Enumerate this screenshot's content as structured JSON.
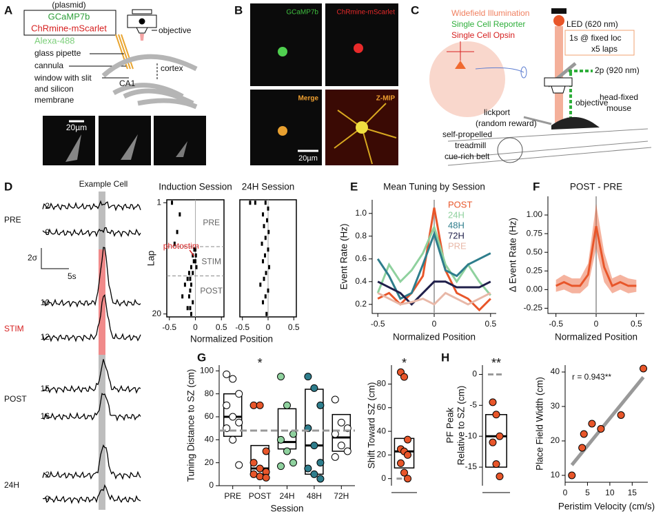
{
  "panels": {
    "A": {
      "label": "A",
      "plasmid": "(plasmid)",
      "constructs": [
        "GCaMP7b",
        "ChRmine-mScarlet"
      ],
      "dye": "Alexa-488",
      "labels": [
        "objective",
        "glass pipette",
        "cannula",
        "window with slit",
        "and silicon",
        "membrane",
        "cortex",
        "CA1"
      ],
      "scale": "20µm"
    },
    "B": {
      "label": "B",
      "images": [
        "GCaMP7b",
        "ChRmine-mScarlet",
        "Merge",
        "Z-MIP"
      ],
      "scale": "20µm"
    },
    "C": {
      "label": "C",
      "legend": [
        "Widefield Illumination",
        "Single Cell Reporter",
        "Single Cell Opsin"
      ],
      "labels": [
        "LED (620 nm)",
        "1s @ fixed loc",
        "x5 laps",
        "2p (920 nm)",
        "objective",
        "head-fixed",
        "mouse",
        "lickport",
        "(random reward)",
        "self-propelled",
        "treadmill",
        "cue-rich belt"
      ]
    },
    "D": {
      "label": "D",
      "title": "Example Cell",
      "groups": [
        "PRE",
        "STIM",
        "POST",
        "24H"
      ],
      "laps": [
        "2",
        "9",
        "10",
        "12",
        "15",
        "16",
        "2",
        "9"
      ],
      "scale_y": "2σ",
      "scale_x": "5s"
    },
    "E": {
      "label": "E"
    },
    "F": {
      "label": "F"
    },
    "G": {
      "label": "G"
    },
    "H": {
      "label": "H"
    }
  },
  "chart_data": [
    {
      "type": "raster",
      "title": "Induction Session",
      "xlabel": "Normalized Position",
      "ylabel": "Lap",
      "xlim": [
        -0.55,
        0.55
      ],
      "xticks": [
        -0.5,
        0,
        0.5
      ],
      "ylim": [
        20.5,
        0.5
      ],
      "yticks": [
        1,
        20
      ],
      "annotations": [
        "PRE",
        "STIM",
        "POST",
        "photostim"
      ],
      "dividers": [
        8.5,
        13.5
      ],
      "x": [
        -0.45,
        -0.3,
        -0.35,
        -0.4,
        0.0,
        -0.02,
        0.01,
        -0.05,
        0.0,
        -0.03,
        0.02,
        -0.08,
        -0.05,
        -0.12,
        -0.1,
        -0.15,
        -0.08,
        -0.2,
        -0.1,
        -0.25,
        -0.12,
        -0.05,
        -0.15,
        -0.1,
        -0.08
      ],
      "y": [
        1,
        3,
        6,
        8,
        9,
        9,
        10,
        10,
        11,
        11,
        12,
        12,
        13,
        13,
        14,
        14,
        15,
        15,
        16,
        17,
        17,
        18,
        19,
        19,
        20
      ]
    },
    {
      "type": "raster",
      "title": "24H Session",
      "xlim": [
        -0.55,
        0.55
      ],
      "xticks": [
        -0.5,
        0,
        0.5
      ],
      "ylim": [
        20.5,
        0.5
      ],
      "x": [
        -0.35,
        -0.25,
        -0.05,
        0,
        -0.1,
        -0.02,
        -0.08,
        0.01,
        -0.05,
        -0.12,
        0.0,
        -0.06,
        -0.1,
        0.02,
        -0.04,
        -0.08,
        -0.15,
        0.0,
        -0.05,
        -0.1,
        -0.03
      ],
      "y": [
        1,
        1,
        1,
        2,
        3,
        4,
        5,
        6,
        7,
        8,
        9,
        10,
        11,
        12,
        13,
        14,
        15,
        16,
        17,
        18,
        20
      ]
    },
    {
      "type": "line",
      "title": "Mean Tuning by Session",
      "xlabel": "Normalized Position",
      "ylabel": "Event Rate (Hz)",
      "xlim": [
        -0.55,
        0.55
      ],
      "xticks": [
        -0.5,
        0,
        0.5
      ],
      "ylim": [
        0.12,
        1.12
      ],
      "yticks": [
        0.2,
        0.4,
        0.6,
        0.8,
        {
          "value": 1,
          "label": "1.0"
        }
      ],
      "x": [
        -0.5,
        -0.4,
        -0.3,
        -0.2,
        -0.1,
        0,
        0.1,
        0.2,
        0.3,
        0.4,
        0.5
      ],
      "series": [
        {
          "name": "POST",
          "color": "#e8562a",
          "values": [
            0.25,
            0.3,
            0.2,
            0.3,
            0.45,
            1.05,
            0.5,
            0.3,
            0.25,
            0.15,
            0.25
          ]
        },
        {
          "name": "24H",
          "color": "#8fd19e",
          "values": [
            0.3,
            0.55,
            0.4,
            0.5,
            0.65,
            0.88,
            0.55,
            0.4,
            0.55,
            0.4,
            0.28
          ]
        },
        {
          "name": "48H",
          "color": "#2e7d8c",
          "values": [
            0.6,
            0.45,
            0.25,
            0.3,
            0.55,
            0.82,
            0.5,
            0.45,
            0.55,
            0.6,
            0.65
          ]
        },
        {
          "name": "72H",
          "color": "#1f1f4a",
          "values": [
            0.4,
            0.35,
            0.3,
            0.2,
            0.3,
            0.4,
            0.4,
            0.35,
            0.35,
            0.35,
            0.4
          ]
        },
        {
          "name": "PRE",
          "color": "#e8b8a8",
          "values": [
            0.3,
            0.25,
            0.2,
            0.22,
            0.25,
            0.2,
            0.3,
            0.25,
            0.2,
            0.25,
            0.3
          ]
        }
      ]
    },
    {
      "type": "line",
      "title": "POST - PRE",
      "xlabel": "Normalized Position",
      "ylabel": "Δ Event Rate (Hz)",
      "xlim": [
        -0.6,
        0.6
      ],
      "xticks": [
        -0.5,
        0,
        0.5
      ],
      "ylim": [
        -0.32,
        1.25
      ],
      "yticks": [
        -0.25,
        {
          "value": 0,
          "label": "0.00"
        },
        0.25,
        {
          "value": 0.5,
          "label": "0.50"
        },
        0.75,
        {
          "value": 1,
          "label": "1.00"
        }
      ],
      "x": [
        -0.5,
        -0.4,
        -0.3,
        -0.2,
        -0.1,
        0,
        0.1,
        0.2,
        0.3,
        0.4,
        0.5
      ],
      "series": [
        {
          "color": "#e8562a",
          "values": [
            0.05,
            0.1,
            0.05,
            0.05,
            0.2,
            0.85,
            0.3,
            0.05,
            0.1,
            0.05,
            0.05
          ],
          "errors": [
            0.08,
            0.1,
            0.1,
            0.1,
            0.15,
            0.3,
            0.2,
            0.1,
            0.1,
            0.1,
            0.08
          ]
        }
      ]
    },
    {
      "type": "box",
      "annotation": "*",
      "xlabel": "Session",
      "ylabel": "Tuning Distance to SZ (cm)",
      "ylim": [
        0,
        105
      ],
      "yticks": [
        0,
        20,
        40,
        60,
        80,
        100
      ],
      "reference": 48,
      "categories": [
        "PRE",
        "POST",
        "24H",
        "48H",
        "72H"
      ],
      "colors": [
        "#ffffff",
        "#e8562a",
        "#8fd19e",
        "#2e7d8c",
        "#ffffff"
      ],
      "q1": [
        43,
        10,
        32,
        10,
        30
      ],
      "median": [
        60,
        15,
        38,
        35,
        42
      ],
      "q3": [
        80,
        35,
        67,
        84,
        62
      ],
      "points": [
        [
          97,
          93,
          80,
          70,
          60,
          55,
          50,
          40,
          18
        ],
        [
          70,
          70,
          30,
          20,
          15,
          12,
          10,
          8,
          7
        ],
        [
          95,
          70,
          45,
          40,
          30,
          20,
          17
        ],
        [
          95,
          85,
          70,
          50,
          35,
          20,
          15,
          10,
          6
        ],
        [
          75,
          55,
          50,
          45,
          35,
          30,
          25
        ]
      ]
    },
    {
      "type": "strip",
      "annotation": "*",
      "ylabel": "Shift Toward SZ (cm)",
      "ylim": [
        -6,
        96
      ],
      "yticks": [
        0,
        20,
        40,
        60,
        80
      ],
      "reference": 0,
      "color": "#e8562a",
      "q1": 9,
      "median": 23,
      "q3": 34,
      "values": [
        90,
        86,
        33,
        25,
        23,
        20,
        13,
        5,
        0
      ]
    },
    {
      "type": "strip",
      "annotation": "**",
      "ylabel": [
        "PF Peak",
        "Relative to SZ (cm)"
      ],
      "ylim": [
        -18,
        1.5
      ],
      "yticks": [
        -15,
        -10,
        -5,
        0
      ],
      "reference": 0,
      "color": "#e8562a",
      "q1": -15,
      "median": -10,
      "q3": -6.5,
      "values": [
        -4.5,
        -6.5,
        -10,
        -11,
        -14.5,
        -16.5
      ]
    },
    {
      "type": "scatter",
      "annotation": "r = 0.943**",
      "xlabel": "Peristim Velocity (cm/s)",
      "ylabel": "Place Field Width (cm)",
      "xlim": [
        0,
        18.5
      ],
      "xticks": [
        0,
        5,
        10,
        15
      ],
      "ylim": [
        8,
        42
      ],
      "yticks": [
        10,
        20,
        30,
        40
      ],
      "color": "#e8562a",
      "x": [
        1.5,
        3.8,
        4.2,
        6,
        8,
        12.5,
        17.5
      ],
      "y": [
        10,
        18,
        22,
        25,
        23.5,
        27.5,
        41
      ],
      "fit": {
        "x": [
          1.5,
          17.5
        ],
        "y": [
          13,
          38.5
        ]
      }
    }
  ]
}
